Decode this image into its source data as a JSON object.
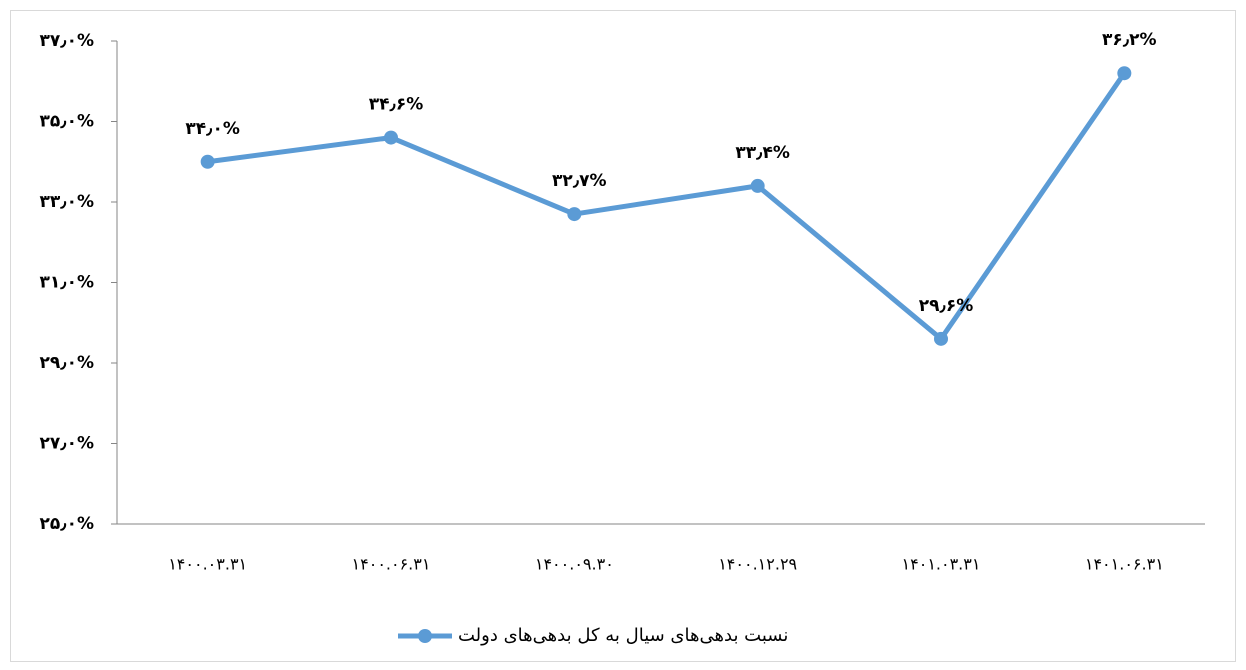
{
  "chart_data": {
    "type": "line",
    "categories": [
      "۱۴۰۰.۰۳.۳۱",
      "۱۴۰۰.۰۶.۳۱",
      "۱۴۰۰.۰۹.۳۰",
      "۱۴۰۰.۱۲.۲۹",
      "۱۴۰۱.۰۳.۳۱",
      "۱۴۰۱.۰۶.۳۱"
    ],
    "series": [
      {
        "name": "نسبت بدهی‌های سیال به کل بدهی‌های دولت",
        "color": "#5b9bd5",
        "values": [
          34.0,
          34.6,
          32.7,
          33.4,
          29.6,
          36.2
        ],
        "value_labels": [
          "۳۴٫۰%",
          "۳۴٫۶%",
          "۳۲٫۷%",
          "۳۳٫۴%",
          "۲۹٫۶%",
          "۳۶٫۲%"
        ]
      }
    ],
    "ylim": [
      25,
      37
    ],
    "yticks": [
      {
        "value": 25,
        "label": "۲۵٫۰%"
      },
      {
        "value": 27,
        "label": "۲۷٫۰%"
      },
      {
        "value": 29,
        "label": "۲۹٫۰%"
      },
      {
        "value": 31,
        "label": "۳۱٫۰%"
      },
      {
        "value": 33,
        "label": "۳۳٫۰%"
      },
      {
        "value": 35,
        "label": "۳۵٫۰%"
      },
      {
        "value": 37,
        "label": "۳۷٫۰%"
      }
    ],
    "grid": false,
    "legend": "bottom"
  }
}
